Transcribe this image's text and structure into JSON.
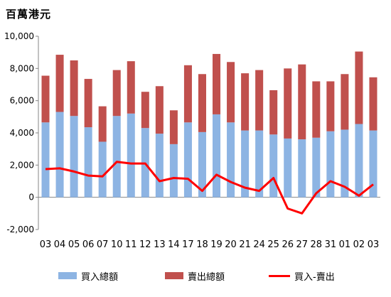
{
  "chart_data": {
    "type": "bar",
    "unit_label": "百萬港元",
    "categories": [
      "03",
      "04",
      "05",
      "06",
      "07",
      "10",
      "11",
      "12",
      "13",
      "14",
      "17",
      "18",
      "19",
      "20",
      "21",
      "24",
      "25",
      "26",
      "27",
      "28",
      "31",
      "01",
      "02",
      "03"
    ],
    "series": [
      {
        "name": "買入總額",
        "kind": "stacked-bar",
        "color": "#8db4e3",
        "values": [
          4650,
          5300,
          5050,
          4350,
          3450,
          5050,
          5200,
          4300,
          3950,
          3300,
          4650,
          4050,
          5150,
          4650,
          4150,
          4150,
          3900,
          3650,
          3600,
          3700,
          4100,
          4200,
          4550,
          4150
        ]
      },
      {
        "name": "賣出總額",
        "kind": "stacked-bar",
        "color": "#c0504d",
        "values": [
          2900,
          3550,
          3450,
          3000,
          2200,
          2850,
          3250,
          2250,
          2950,
          2100,
          3550,
          3600,
          3750,
          3750,
          3550,
          3750,
          2750,
          4350,
          4650,
          3500,
          3100,
          3450,
          4500,
          3300
        ]
      },
      {
        "name": "買入-賣出",
        "kind": "line",
        "color": "#ff0000",
        "values": [
          1750,
          1800,
          1600,
          1350,
          1300,
          2200,
          2100,
          2100,
          1000,
          1200,
          1150,
          400,
          1400,
          950,
          600,
          400,
          1200,
          -700,
          -1000,
          250,
          1000,
          650,
          100,
          800
        ]
      }
    ],
    "ylim": [
      -2000,
      10000
    ],
    "yticks": [
      "-2,000",
      "0",
      "2,000",
      "4,000",
      "6,000",
      "8,000",
      "10,000"
    ],
    "grid": false,
    "legend_position": "bottom"
  }
}
